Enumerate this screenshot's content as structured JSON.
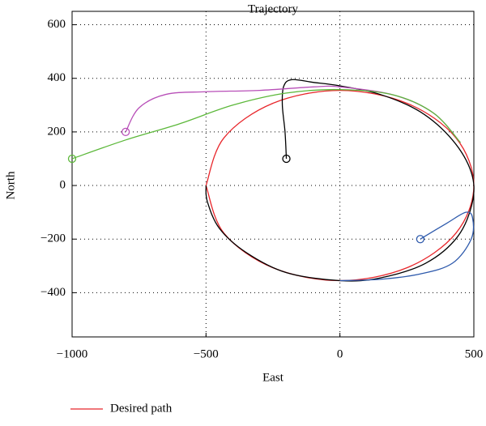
{
  "chart_data": {
    "type": "line",
    "title": "Trajectory",
    "x_label": "East",
    "y_label": "North",
    "xlim": [
      -1000,
      500
    ],
    "ylim": [
      -565,
      650
    ],
    "xticks": [
      {
        "value": -1000,
        "label": "−1000"
      },
      {
        "value": -500,
        "label": "−500"
      },
      0,
      500
    ],
    "yticks": [
      600,
      400,
      200,
      0,
      {
        "value": -200,
        "label": "−200"
      },
      {
        "value": -400,
        "label": "−400"
      }
    ],
    "grid": true,
    "legend": "bottom-left",
    "series": [
      {
        "name": "Desired path",
        "color": "#e8262b",
        "x": [
          -500,
          -433,
          -250,
          0,
          250,
          433,
          500,
          433,
          250,
          0,
          -250,
          -433,
          -500
        ],
        "values": [
          0,
          178,
          307,
          355,
          307,
          178,
          0,
          -178,
          -307,
          -355,
          -307,
          -178,
          0
        ]
      },
      {
        "color": "#000000",
        "x": [
          -200,
          -205,
          -215,
          -210,
          -180,
          -100,
          0,
          150,
          300,
          420,
          490,
          495,
          440,
          320,
          150,
          0,
          -200,
          -350,
          -450,
          -495,
          -500
        ],
        "values": [
          100,
          200,
          300,
          370,
          395,
          385,
          372,
          340,
          275,
          170,
          50,
          -60,
          -190,
          -290,
          -345,
          -355,
          -325,
          -250,
          -160,
          -60,
          0
        ]
      },
      {
        "color": "#b84fb8",
        "x": [
          -800,
          -750,
          -650,
          -500,
          -300,
          -100,
          0,
          200,
          350,
          450
        ],
        "values": [
          200,
          290,
          340,
          350,
          355,
          368,
          368,
          338,
          270,
          160
        ]
      },
      {
        "color": "#5cb83a",
        "x": [
          -1000,
          -800,
          -600,
          -400,
          -200,
          0,
          200,
          350,
          450
        ],
        "values": [
          100,
          170,
          230,
          300,
          345,
          358,
          338,
          270,
          160
        ]
      },
      {
        "color": "#2e5aac",
        "x": [
          300,
          400,
          470,
          495,
          490,
          420,
          300,
          150,
          0
        ],
        "values": [
          -200,
          -140,
          -100,
          -120,
          -200,
          -290,
          -330,
          -350,
          -355
        ]
      }
    ]
  }
}
